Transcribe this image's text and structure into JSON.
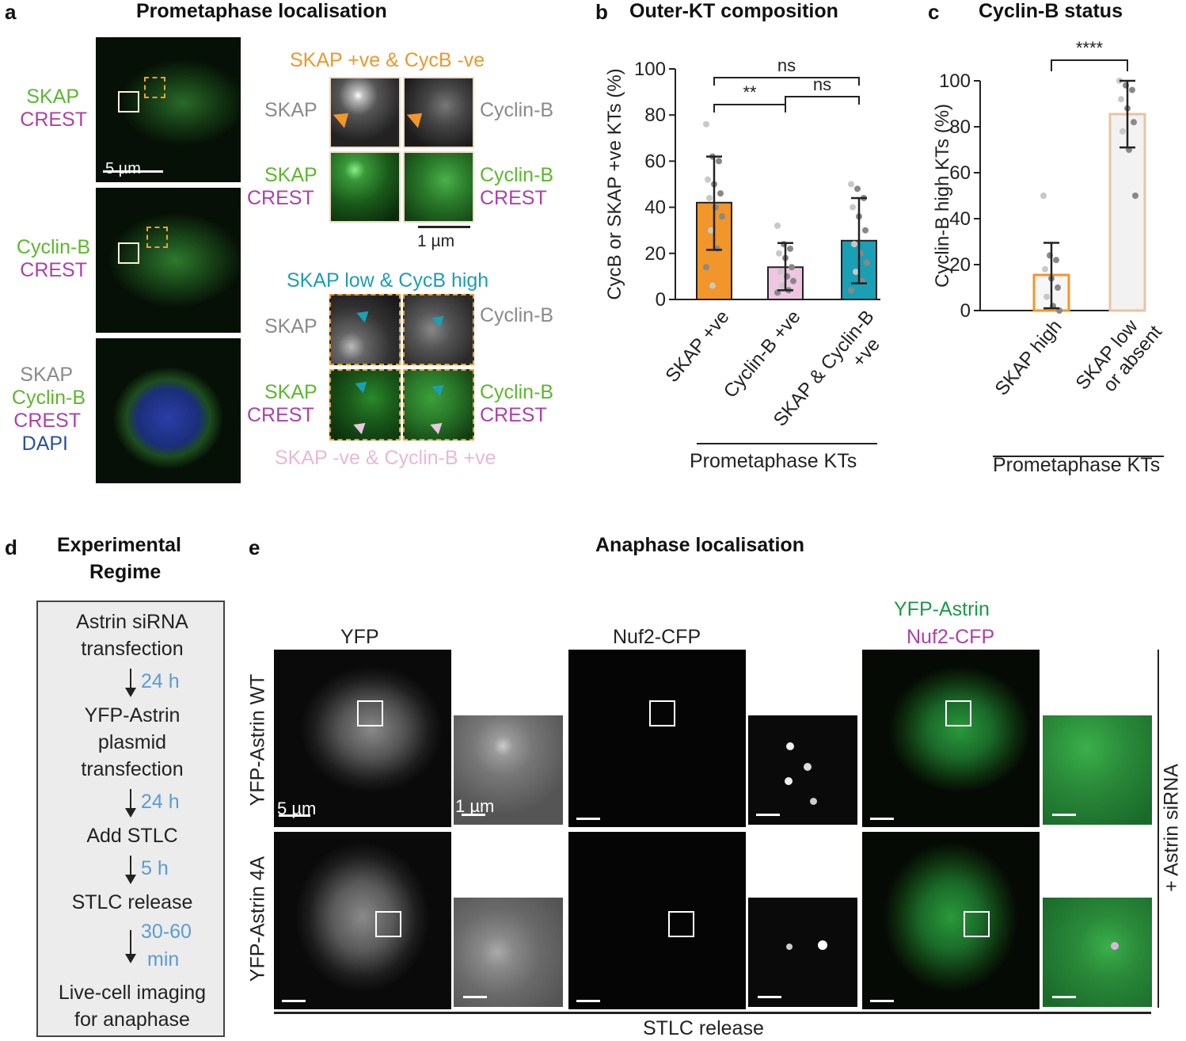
{
  "panel_a": {
    "label": "a",
    "title": "Prometaphase localisation",
    "rows": [
      {
        "lines": [
          "SKAP",
          "CREST"
        ]
      },
      {
        "lines": [
          "Cyclin-B",
          "CREST"
        ]
      },
      {
        "lines": [
          "SKAP",
          "Cyclin-B",
          "CREST",
          "DAPI"
        ]
      }
    ],
    "scale_main": "5 µm",
    "scale_inset": "1 µm",
    "group1_title": "SKAP +ve & CycB -ve",
    "group2_title": "SKAP low & CycB high",
    "group2_footer": "SKAP -ve & Cyclin-B +ve",
    "inset_left_top": "SKAP",
    "inset_right_top": "Cyclin-B",
    "inset_left_bottom": [
      "SKAP",
      "CREST"
    ],
    "inset_right_bottom": [
      "Cyclin-B",
      "CREST"
    ]
  },
  "panel_b": {
    "label": "b",
    "title": "Outer-KT composition",
    "group_label": "Prometaphase KTs"
  },
  "panel_c": {
    "label": "c",
    "title": "Cyclin-B status",
    "group_label": "Prometaphase KTs"
  },
  "panel_d": {
    "label": "d",
    "title_lines": [
      "Experimental",
      "Regime"
    ],
    "steps": [
      "Astrin siRNA",
      "transfection",
      "YFP-Astrin",
      "plasmid",
      "transfection",
      "Add STLC",
      "STLC release",
      "Live-cell imaging",
      "for anaphase"
    ],
    "times": [
      "24 h",
      "24 h",
      "5 h",
      "30-60",
      "min"
    ]
  },
  "panel_e": {
    "label": "e",
    "title": "Anaphase localisation",
    "col_yfp": "YFP",
    "col_nuf2": "Nuf2-CFP",
    "col_merge": [
      "YFP-Astrin",
      "Nuf2-CFP"
    ],
    "row_wt": "YFP-Astrin WT",
    "row_4a": "YFP-Astrin 4A",
    "side_label": "+ Astrin siRNA",
    "bottom_label": "STLC release",
    "scale_main": "5 µm",
    "scale_inset": "1 µm"
  },
  "chart_data": [
    {
      "type": "bar",
      "title": "Outer-KT composition",
      "ylabel": "CycB or SKAP +ve KTs (%)",
      "ylim": [
        0,
        100
      ],
      "yticks": [
        0,
        20,
        40,
        60,
        80,
        100
      ],
      "categories": [
        "SKAP +ve",
        "Cyclin-B +ve",
        "SKAP & Cyclin-B +ve"
      ],
      "values": [
        42,
        14,
        25.5
      ],
      "sd_low": [
        21.5,
        4,
        7
      ],
      "sd_high": [
        62,
        24.5,
        44
      ],
      "colors": [
        "#f0962a",
        "#e8b8d8",
        "#1b9fb5"
      ],
      "points": [
        [
          76,
          62,
          60,
          52,
          50,
          46,
          44,
          40,
          36,
          30,
          22,
          14,
          6
        ],
        [
          32,
          24,
          22,
          20,
          18,
          14,
          12,
          10,
          8,
          6,
          4,
          3
        ],
        [
          50,
          48,
          44,
          40,
          36,
          30,
          24,
          20,
          16,
          12,
          8,
          4
        ]
      ],
      "significance": [
        {
          "pair": [
            0,
            2
          ],
          "label": "ns"
        },
        {
          "pair": [
            0,
            1
          ],
          "label": "**"
        },
        {
          "pair": [
            1,
            2
          ],
          "label": "ns"
        }
      ]
    },
    {
      "type": "bar",
      "title": "Cyclin-B status",
      "ylabel": "Cyclin-B high KTs (%)",
      "ylim": [
        0,
        100
      ],
      "yticks": [
        0,
        20,
        40,
        60,
        80,
        100
      ],
      "categories": [
        "SKAP high",
        "SKAP low or absent"
      ],
      "values": [
        15.5,
        85.5
      ],
      "sd_low": [
        1,
        71
      ],
      "sd_high": [
        29.5,
        100
      ],
      "colors": [
        "#f0962a",
        "#e8c4a0"
      ],
      "points": [
        [
          50,
          24,
          22,
          18,
          14,
          10,
          6,
          2,
          0
        ],
        [
          100,
          98,
          96,
          92,
          88,
          82,
          78,
          70,
          50
        ]
      ],
      "significance": [
        {
          "pair": [
            0,
            1
          ],
          "label": "****"
        }
      ]
    }
  ]
}
